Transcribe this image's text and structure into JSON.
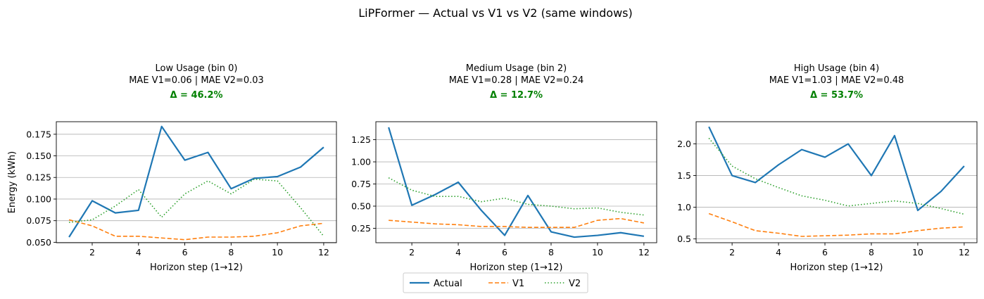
{
  "figure": {
    "suptitle": "LiPFormer — Actual vs V1 vs V2 (same windows)",
    "legend": {
      "position": "bottom-center",
      "entries": [
        {
          "label": "Actual",
          "color": "#1f77b4",
          "style": "solid"
        },
        {
          "label": "V1",
          "color": "#ff7f0e",
          "style": "dashed"
        },
        {
          "label": "V2",
          "color": "#2ca02c",
          "style": "dotted"
        }
      ]
    },
    "colors": {
      "actual": "#1f77b4",
      "v1": "#ff7f0e",
      "v2": "#2ca02c",
      "delta": "#008000",
      "grid": "#b0b0b0"
    }
  },
  "chart_data": [
    {
      "type": "line",
      "title_line1": "Low Usage (bin 0)",
      "title_line2": "MAE V1=0.06 | MAE V2=0.03",
      "delta_label": "Δ = 46.2%",
      "xlabel": "Horizon step (1→12)",
      "ylabel": "Energy (kWh)",
      "xlim": [
        0.45,
        12.55
      ],
      "ylim": [
        0.0495,
        0.1895
      ],
      "xticks": [
        2,
        4,
        6,
        8,
        10,
        12
      ],
      "yticks": [
        0.05,
        0.075,
        0.1,
        0.125,
        0.15,
        0.175
      ],
      "ytick_labels": [
        "0.050",
        "0.075",
        "0.100",
        "0.125",
        "0.150",
        "0.175"
      ],
      "grid": "y",
      "x": [
        1,
        2,
        3,
        4,
        5,
        6,
        7,
        8,
        9,
        10,
        11,
        12
      ],
      "series": [
        {
          "name": "Actual",
          "values": [
            0.056,
            0.098,
            0.084,
            0.087,
            0.184,
            0.145,
            0.154,
            0.112,
            0.124,
            0.126,
            0.137,
            0.16
          ]
        },
        {
          "name": "V1",
          "values": [
            0.076,
            0.069,
            0.057,
            0.057,
            0.055,
            0.053,
            0.056,
            0.056,
            0.057,
            0.061,
            0.069,
            0.072
          ]
        },
        {
          "name": "V2",
          "values": [
            0.073,
            0.076,
            0.092,
            0.111,
            0.079,
            0.106,
            0.121,
            0.106,
            0.123,
            0.121,
            0.09,
            0.057
          ]
        }
      ]
    },
    {
      "type": "line",
      "title_line1": "Medium Usage (bin 2)",
      "title_line2": "MAE V1=0.28 | MAE V2=0.24",
      "delta_label": "Δ = 12.7%",
      "xlabel": "Horizon step (1→12)",
      "ylabel": "",
      "xlim": [
        0.45,
        12.55
      ],
      "ylim": [
        0.087,
        1.453
      ],
      "xticks": [
        2,
        4,
        6,
        8,
        10,
        12
      ],
      "yticks": [
        0.25,
        0.5,
        0.75,
        1.0,
        1.25
      ],
      "ytick_labels": [
        "0.25",
        "0.50",
        "0.75",
        "1.00",
        "1.25"
      ],
      "grid": "y",
      "x": [
        1,
        2,
        3,
        4,
        5,
        6,
        7,
        8,
        9,
        10,
        11,
        12
      ],
      "series": [
        {
          "name": "Actual",
          "values": [
            1.39,
            0.51,
            0.63,
            0.77,
            0.45,
            0.17,
            0.62,
            0.21,
            0.15,
            0.17,
            0.2,
            0.16
          ]
        },
        {
          "name": "V1",
          "values": [
            0.34,
            0.32,
            0.3,
            0.29,
            0.27,
            0.27,
            0.26,
            0.26,
            0.26,
            0.34,
            0.36,
            0.31
          ]
        },
        {
          "name": "V2",
          "values": [
            0.82,
            0.68,
            0.61,
            0.61,
            0.55,
            0.59,
            0.52,
            0.5,
            0.47,
            0.48,
            0.43,
            0.4
          ]
        }
      ]
    },
    {
      "type": "line",
      "title_line1": "High Usage (bin 4)",
      "title_line2": "MAE V1=1.03 | MAE V2=0.48",
      "delta_label": "Δ = 53.7%",
      "xlabel": "Horizon step (1→12)",
      "ylabel": "",
      "xlim": [
        0.45,
        12.55
      ],
      "ylim": [
        0.44,
        2.35
      ],
      "xticks": [
        2,
        4,
        6,
        8,
        10,
        12
      ],
      "yticks": [
        0.5,
        1.0,
        1.5,
        2.0
      ],
      "ytick_labels": [
        "0.5",
        "1.0",
        "1.5",
        "2.0"
      ],
      "grid": "y",
      "x": [
        1,
        2,
        3,
        4,
        5,
        6,
        7,
        8,
        9,
        10,
        11,
        12
      ],
      "series": [
        {
          "name": "Actual",
          "values": [
            2.27,
            1.5,
            1.39,
            1.67,
            1.91,
            1.79,
            2.0,
            1.5,
            2.13,
            0.95,
            1.25,
            1.65
          ]
        },
        {
          "name": "V1",
          "values": [
            0.9,
            0.77,
            0.63,
            0.59,
            0.54,
            0.55,
            0.56,
            0.58,
            0.58,
            0.63,
            0.67,
            0.69
          ]
        },
        {
          "name": "V2",
          "values": [
            2.09,
            1.65,
            1.45,
            1.31,
            1.18,
            1.11,
            1.02,
            1.06,
            1.1,
            1.06,
            0.98,
            0.89
          ]
        }
      ]
    }
  ]
}
